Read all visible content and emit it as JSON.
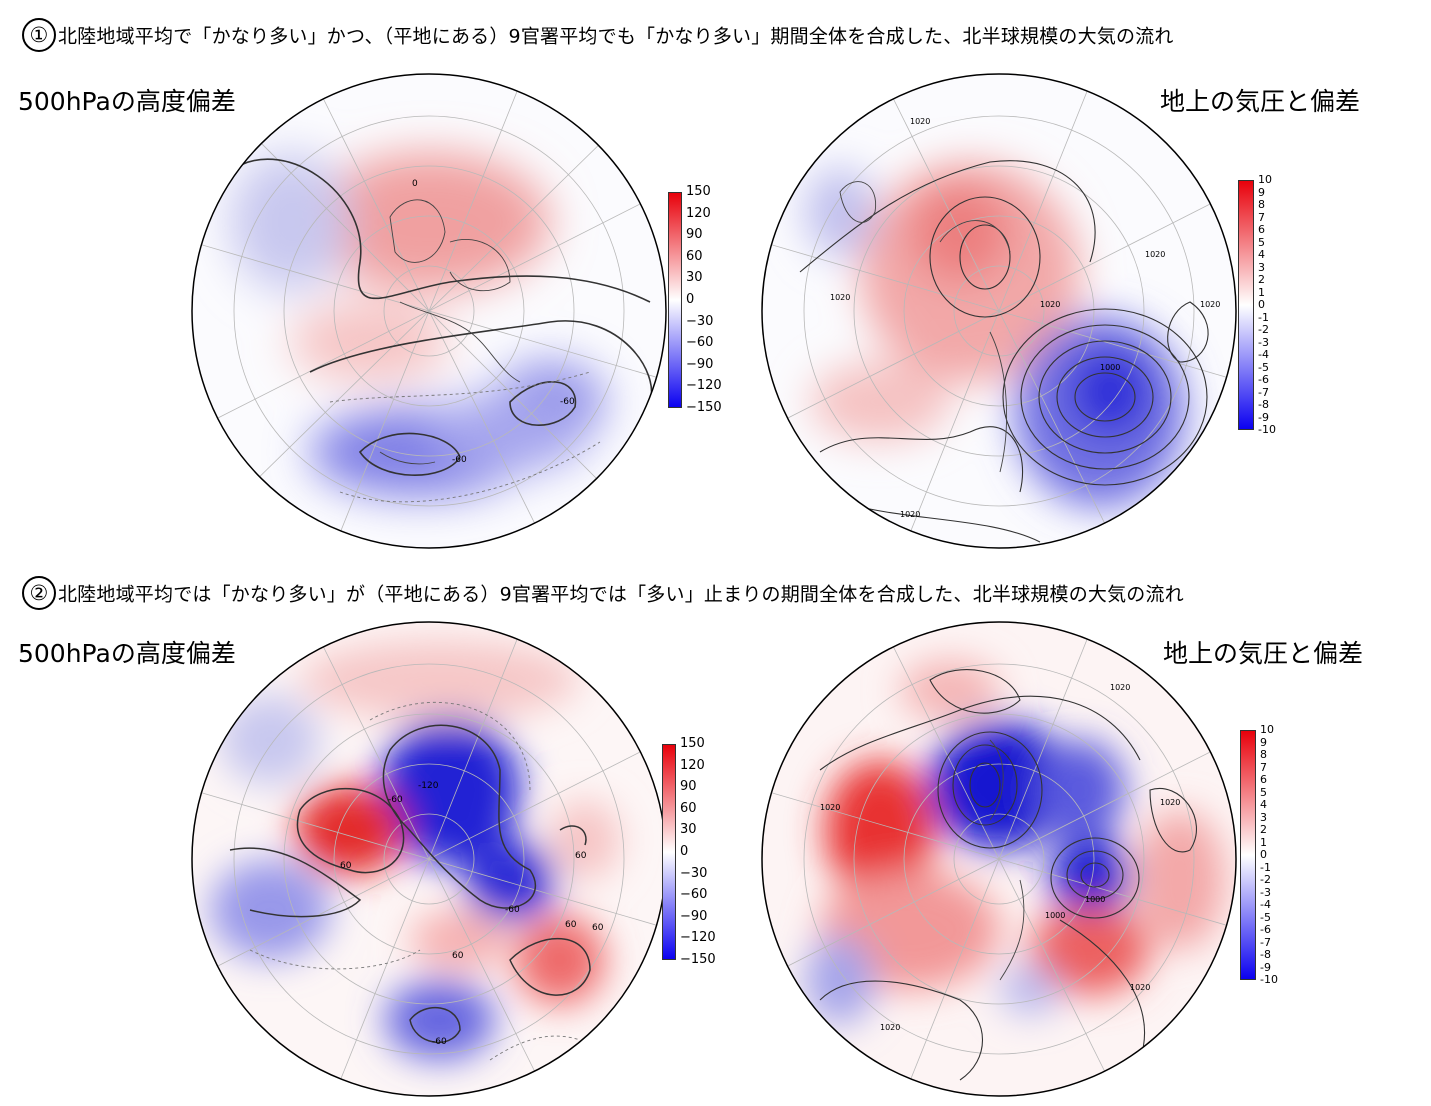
{
  "sections": [
    {
      "number": "①",
      "title": "北陸地域平均で「かなり多い」かつ、（平地にある）9官署平均でも「かなり多い」期間全体を合成した、北半球規模の大気の流れ",
      "left_panel": {
        "label": "500hPaの高度偏差",
        "contour_labels": [
          "0",
          "-60",
          "-60"
        ],
        "colorbar": {
          "ticks": [
            "150",
            "120",
            "90",
            "60",
            "30",
            "0",
            "−30",
            "−60",
            "−90",
            "−120",
            "−150"
          ],
          "high_color": "#e8000a",
          "low_color": "#0a00f0"
        }
      },
      "right_panel": {
        "label": "地上の気圧と偏差",
        "contour_labels": [
          "1020",
          "1020",
          "1020",
          "1020",
          "1020",
          "1000",
          "1020"
        ],
        "colorbar": {
          "ticks": [
            "10",
            "9",
            "8",
            "7",
            "6",
            "5",
            "4",
            "3",
            "2",
            "1",
            "0",
            "-1",
            "-2",
            "-3",
            "-4",
            "-5",
            "-6",
            "-7",
            "-8",
            "-9",
            "-10"
          ],
          "high_color": "#e8000a",
          "low_color": "#0a00f0"
        }
      }
    },
    {
      "number": "②",
      "title": "北陸地域平均では「かなり多い」が（平地にある）9官署平均では「多い」止まりの期間全体を合成した、北半球規模の大気の流れ",
      "left_panel": {
        "label": "500hPaの高度偏差",
        "contour_labels": [
          "-120",
          "-60",
          "60",
          "60",
          "60",
          "60",
          "60",
          "-60",
          "-60"
        ],
        "colorbar": {
          "ticks": [
            "150",
            "120",
            "90",
            "60",
            "30",
            "0",
            "−30",
            "−60",
            "−90",
            "−120",
            "−150"
          ],
          "high_color": "#e8000a",
          "low_color": "#0a00f0"
        }
      },
      "right_panel": {
        "label": "地上の気圧と偏差",
        "contour_labels": [
          "1020",
          "1020",
          "1020",
          "1000",
          "1000",
          "1020",
          "1020"
        ],
        "colorbar": {
          "ticks": [
            "10",
            "9",
            "8",
            "7",
            "6",
            "5",
            "4",
            "3",
            "2",
            "1",
            "0",
            "-1",
            "-2",
            "-3",
            "-4",
            "-5",
            "-6",
            "-7",
            "-8",
            "-9",
            "-10"
          ],
          "high_color": "#e8000a",
          "low_color": "#0a00f0"
        }
      }
    }
  ]
}
